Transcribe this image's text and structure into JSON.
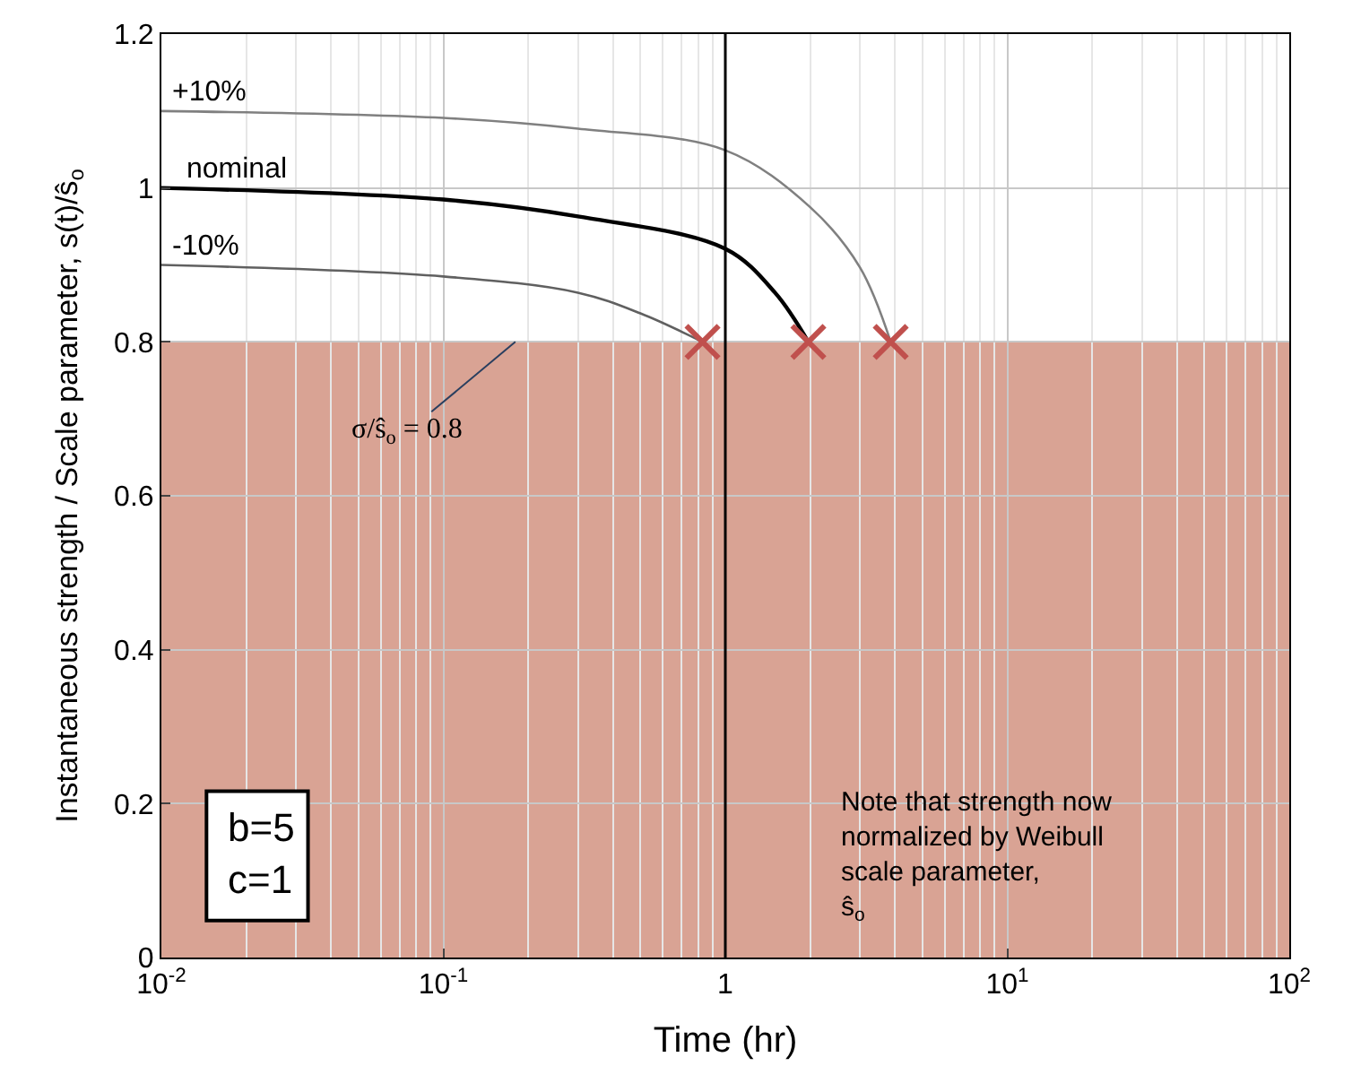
{
  "chart_data": {
    "type": "line",
    "xlabel": "Time (hr)",
    "ylabel": "Instantaneous strength / Scale parameter, s(t)/ŝ$_{o}$",
    "log": "x",
    "xlim": [
      0.01,
      100
    ],
    "xticks": [
      {
        "value": 0.01,
        "label": "10$^{-2}$"
      },
      {
        "value": 0.1,
        "label": "10$^{-1}$"
      },
      {
        "value": 1,
        "label": "1"
      },
      {
        "value": 10,
        "label": "10$^{1}$"
      },
      {
        "value": 100,
        "label": "10$^{2}$"
      }
    ],
    "ylim": [
      0,
      1.2
    ],
    "yticks": [
      0,
      0.2,
      0.4,
      0.6,
      0.8,
      1,
      1.2
    ],
    "grid": true,
    "legend": false,
    "series": [
      {
        "name": "+10%",
        "color": "#808080",
        "x": [
          0.01,
          0.1,
          0.3,
          1,
          2,
          3,
          3.86
        ],
        "values": [
          1.1,
          1.091,
          1.077,
          1.049,
          0.975,
          0.897,
          0.8
        ]
      },
      {
        "name": "nominal",
        "color": "#000000",
        "x": [
          0.01,
          0.1,
          0.3,
          1,
          1.5,
          1.97
        ],
        "values": [
          1.0,
          0.985,
          0.963,
          0.921,
          0.864,
          0.8
        ]
      },
      {
        "name": "-10%",
        "color": "#606060",
        "x": [
          0.01,
          0.1,
          0.3,
          0.5,
          0.83
        ],
        "values": [
          0.9,
          0.885,
          0.864,
          0.837,
          0.8
        ]
      },
      {
        "type": "scatter",
        "marker": "cross",
        "color": "#c0504d",
        "x": [
          0.83,
          1.97,
          3.86
        ],
        "values": [
          0.8,
          0.8,
          0.8
        ]
      }
    ],
    "ref_lines": [
      {
        "axis": "x",
        "value": 1,
        "color": "#000000"
      }
    ],
    "bands": [
      {
        "axis": "y",
        "from": 0,
        "to": 0.8,
        "color": "#d9a394",
        "label": "σ/ŝ$_{o}$ = 0.8"
      }
    ],
    "annotations": [
      "b=5",
      "c=1",
      "Note that strength now normalized by Weibull scale parameter, ŝ$_{o}$"
    ]
  }
}
